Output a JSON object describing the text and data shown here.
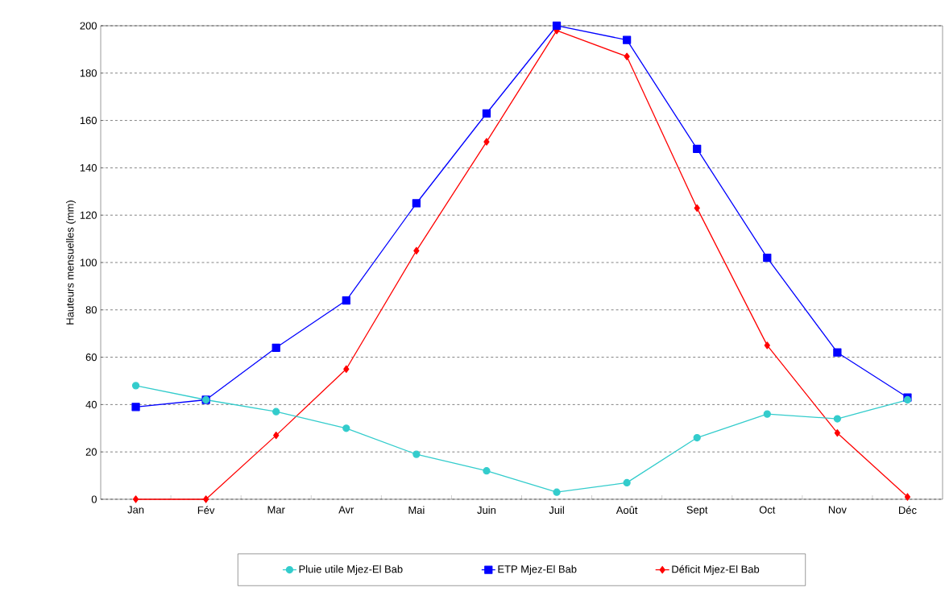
{
  "chart_data": {
    "type": "line",
    "ylabel": "Hauteurs mensuelles (mm)",
    "categories": [
      "Jan",
      "Fév",
      "Mar",
      "Avr",
      "Mai",
      "Juin",
      "Juil",
      "Août",
      "Sept",
      "Oct",
      "Nov",
      "Déc"
    ],
    "series": [
      {
        "name": "Pluie utile Mjez-El Bab",
        "color": "#33cccc",
        "marker": "circle",
        "values": [
          48,
          42,
          37,
          30,
          19,
          12,
          3,
          7,
          26,
          36,
          34,
          42
        ]
      },
      {
        "name": "ETP Mjez-El Bab",
        "color": "#0000ff",
        "marker": "square",
        "values": [
          39,
          42,
          64,
          84,
          125,
          163,
          200,
          194,
          148,
          102,
          62,
          43
        ]
      },
      {
        "name": "Déficit Mjez-El Bab",
        "color": "#ff0000",
        "marker": "diamond",
        "values": [
          0,
          0,
          27,
          55,
          105,
          151,
          198,
          187,
          123,
          65,
          28,
          1
        ]
      }
    ],
    "ylim": [
      0,
      200
    ],
    "yticks": [
      0,
      20,
      40,
      60,
      80,
      100,
      120,
      140,
      160,
      180,
      200
    ],
    "grid": "y",
    "legend": "bottom",
    "line_style": "solid"
  }
}
